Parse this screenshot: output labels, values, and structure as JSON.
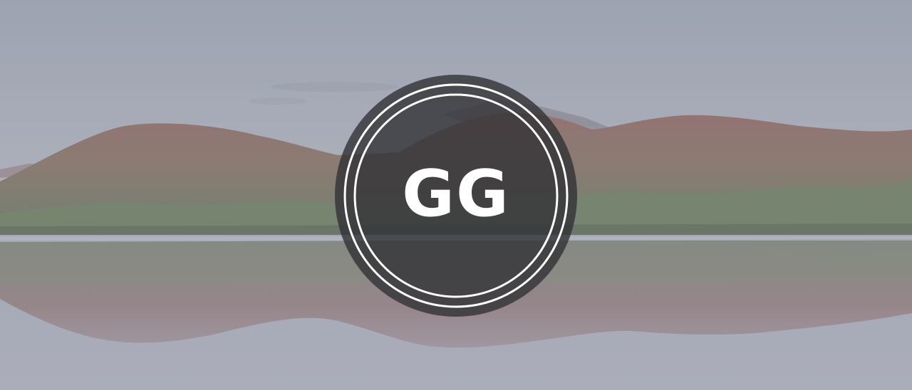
{
  "hero": {
    "logo": {
      "monogram": "GG",
      "badge_color": "#3a3a3e",
      "ring_color": "#ffffff",
      "text_color": "#ffffff"
    },
    "background": {
      "sky_color": "#a4a8b6",
      "water_color": "#a6a8b5",
      "forest_color": "#6e7a5c",
      "autumn_accent": "#b06a4f"
    }
  }
}
